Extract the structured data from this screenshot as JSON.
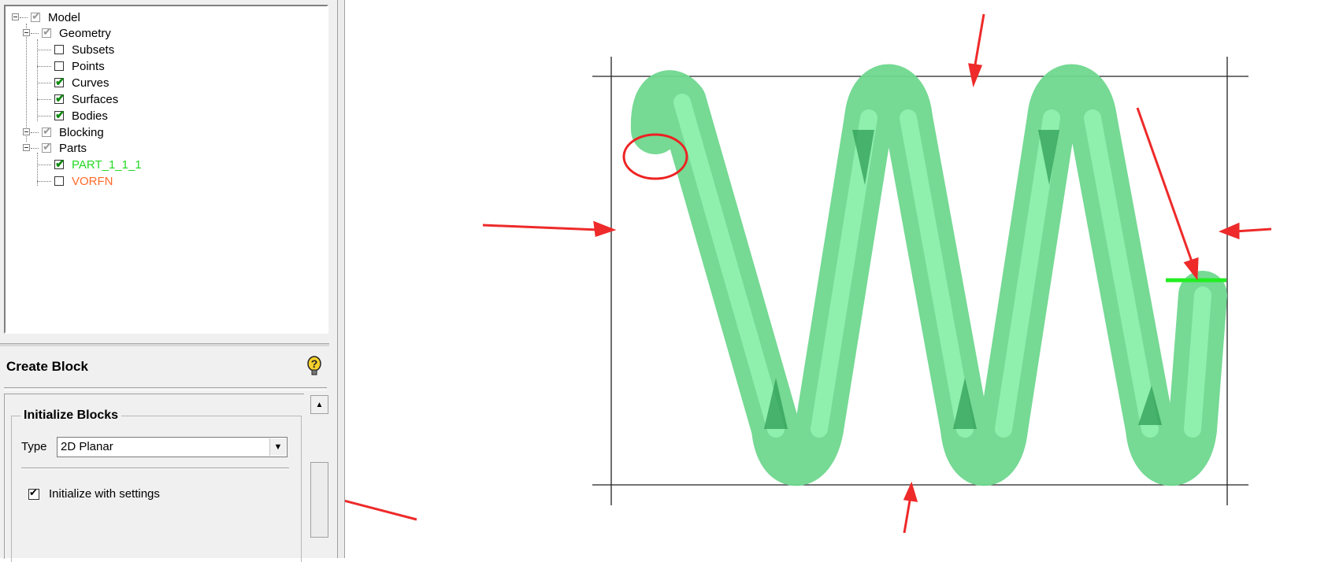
{
  "tree": {
    "items": [
      {
        "label": "Model",
        "checked": "partial",
        "color": "#000000"
      },
      {
        "label": "Geometry",
        "checked": "partial",
        "color": "#000000"
      },
      {
        "label": "Subsets",
        "checked": "no",
        "color": "#000000"
      },
      {
        "label": "Points",
        "checked": "no",
        "color": "#000000"
      },
      {
        "label": "Curves",
        "checked": "yes",
        "color": "#000000"
      },
      {
        "label": "Surfaces",
        "checked": "yes",
        "color": "#000000"
      },
      {
        "label": "Bodies",
        "checked": "yes",
        "color": "#000000"
      },
      {
        "label": "Blocking",
        "checked": "partial",
        "color": "#000000"
      },
      {
        "label": "Parts",
        "checked": "partial",
        "color": "#000000"
      },
      {
        "label": "PART_1_1_1",
        "checked": "yes",
        "color": "#22d922"
      },
      {
        "label": "VORFN",
        "checked": "no",
        "color": "#ff6a2a"
      }
    ]
  },
  "panel": {
    "title": "Create Block",
    "group_title": "Initialize Blocks",
    "type_label": "Type",
    "type_value": "2D Planar",
    "init_label": "Initialize with settings",
    "init_checked": true
  },
  "colors": {
    "spring": "#6fd88f",
    "annotation": "#ee2a2a",
    "edge_highlight": "#22ee22"
  }
}
